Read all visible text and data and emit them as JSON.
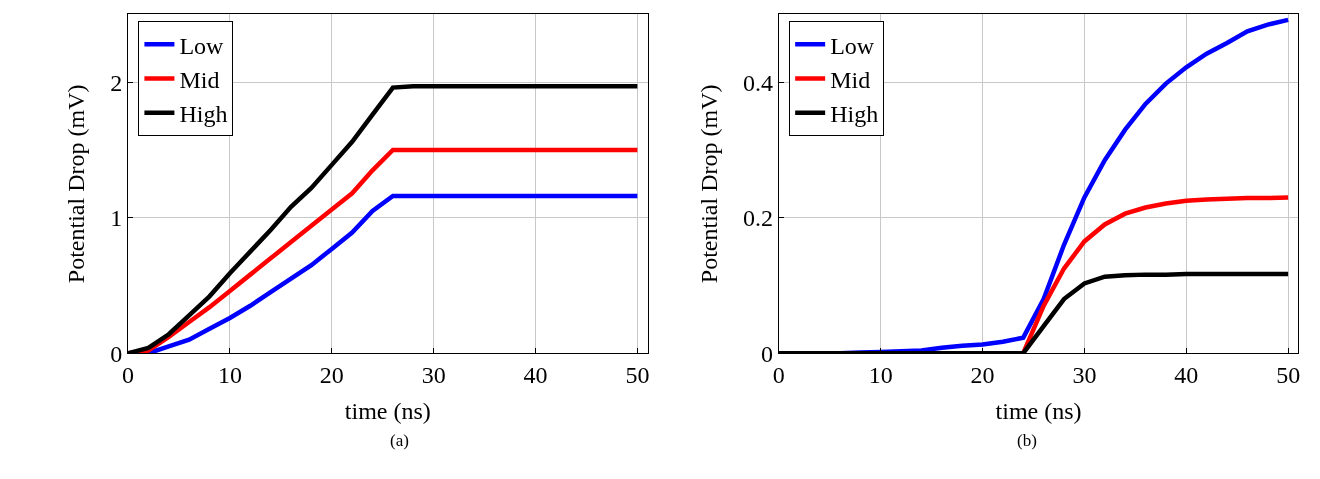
{
  "chart_data": [
    {
      "type": "line",
      "xlabel": "time (ns)",
      "ylabel": "Potential Drop (mV)",
      "annotations": [
        "(a)"
      ],
      "x": [
        0,
        2,
        4,
        6,
        8,
        10,
        12,
        14,
        16,
        18,
        20,
        22,
        24,
        26,
        28,
        30,
        32,
        34,
        36,
        38,
        40,
        42,
        44,
        46,
        48,
        50
      ],
      "series": [
        {
          "name": "Low",
          "color": "#0000ff",
          "values": [
            0,
            0,
            0.05,
            0.1,
            0.18,
            0.26,
            0.35,
            0.45,
            0.55,
            0.65,
            0.77,
            0.89,
            1.05,
            1.16,
            1.16,
            1.16,
            1.16,
            1.16,
            1.16,
            1.16,
            1.16,
            1.16,
            1.16,
            1.16,
            1.16,
            1.16
          ]
        },
        {
          "name": "Mid",
          "color": "#ff0000",
          "values": [
            0,
            0.02,
            0.12,
            0.23,
            0.34,
            0.46,
            0.58,
            0.7,
            0.82,
            0.94,
            1.06,
            1.18,
            1.35,
            1.5,
            1.5,
            1.5,
            1.5,
            1.5,
            1.5,
            1.5,
            1.5,
            1.5,
            1.5,
            1.5,
            1.5,
            1.5
          ]
        },
        {
          "name": "High",
          "color": "#000000",
          "values": [
            0,
            0.04,
            0.14,
            0.28,
            0.42,
            0.59,
            0.75,
            0.91,
            1.08,
            1.22,
            1.39,
            1.56,
            1.76,
            1.96,
            1.97,
            1.97,
            1.97,
            1.97,
            1.97,
            1.97,
            1.97,
            1.97,
            1.97,
            1.97,
            1.97,
            1.97
          ]
        }
      ],
      "xlim": [
        0,
        51
      ],
      "ylim": [
        0,
        2.5
      ],
      "xticks": [
        0,
        10,
        20,
        30,
        40,
        50
      ],
      "yticks": [
        0,
        1,
        2
      ],
      "grid": true,
      "legend": "top left",
      "marker": "none",
      "line_style": "solid"
    },
    {
      "type": "line",
      "xlabel": "time (ns)",
      "ylabel": "Potential Drop (mV)",
      "annotations": [
        "(b)"
      ],
      "x": [
        0,
        2,
        4,
        6,
        8,
        10,
        12,
        14,
        16,
        18,
        20,
        22,
        24,
        26,
        28,
        30,
        32,
        34,
        36,
        38,
        40,
        42,
        44,
        46,
        48,
        50
      ],
      "series": [
        {
          "name": "Low",
          "color": "#0000ff",
          "values": [
            null,
            null,
            0,
            0,
            0.001,
            0.002,
            0.003,
            0.004,
            0.008,
            0.011,
            0.013,
            0.017,
            0.023,
            0.08,
            0.16,
            0.23,
            0.285,
            0.33,
            0.368,
            0.398,
            0.422,
            0.442,
            0.458,
            0.475,
            0.485,
            0.492
          ]
        },
        {
          "name": "Mid",
          "color": "#ff0000",
          "values": [
            null,
            null,
            null,
            null,
            null,
            null,
            null,
            null,
            null,
            null,
            null,
            null,
            0,
            0.07,
            0.125,
            0.165,
            0.19,
            0.206,
            0.215,
            0.221,
            0.225,
            0.227,
            0.228,
            0.229,
            0.229,
            0.23
          ]
        },
        {
          "name": "High",
          "color": "#000000",
          "values": [
            0,
            0,
            0,
            0,
            0,
            0,
            0,
            0,
            0,
            0,
            0,
            0,
            0,
            0.04,
            0.08,
            0.103,
            0.113,
            0.115,
            0.116,
            0.116,
            0.117,
            0.117,
            0.117,
            0.117,
            0.117,
            0.117
          ]
        }
      ],
      "xlim": [
        0,
        51
      ],
      "ylim": [
        0,
        0.5
      ],
      "xticks": [
        0,
        10,
        20,
        30,
        40,
        50
      ],
      "yticks": [
        0,
        0.2,
        0.4
      ],
      "grid": true,
      "legend": "top left",
      "marker": "none",
      "line_style": "solid"
    }
  ]
}
